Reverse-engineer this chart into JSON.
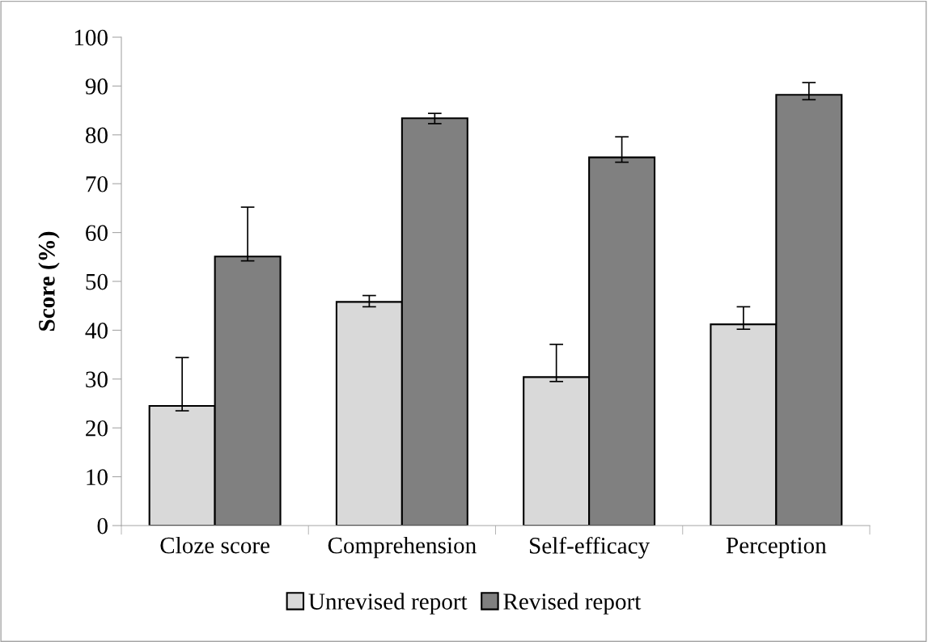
{
  "chart_data": {
    "type": "bar",
    "ylabel": "Score (%)",
    "categories": [
      "Cloze score",
      "Comprehension",
      "Self-efficacy",
      "Perception"
    ],
    "series": [
      {
        "name": "Unrevised report",
        "color": "#d9d9d9",
        "values": [
          24.5,
          45.8,
          30.4,
          41.2
        ],
        "errors": [
          [
            23.5,
            34.4
          ],
          [
            44.8,
            47.1
          ],
          [
            29.5,
            37.1
          ],
          [
            40.2,
            44.8
          ]
        ]
      },
      {
        "name": "Revised report",
        "color": "#808080",
        "values": [
          55.1,
          83.4,
          75.4,
          88.2
        ],
        "errors": [
          [
            54.2,
            65.2
          ],
          [
            82.3,
            84.4
          ],
          [
            74.4,
            79.6
          ],
          [
            87.2,
            90.7
          ]
        ]
      }
    ],
    "ylim": [
      0,
      100
    ],
    "yticks": [
      0,
      10,
      20,
      30,
      40,
      50,
      60,
      70,
      80,
      90,
      100
    ],
    "grid": false,
    "legend": "bottom"
  }
}
